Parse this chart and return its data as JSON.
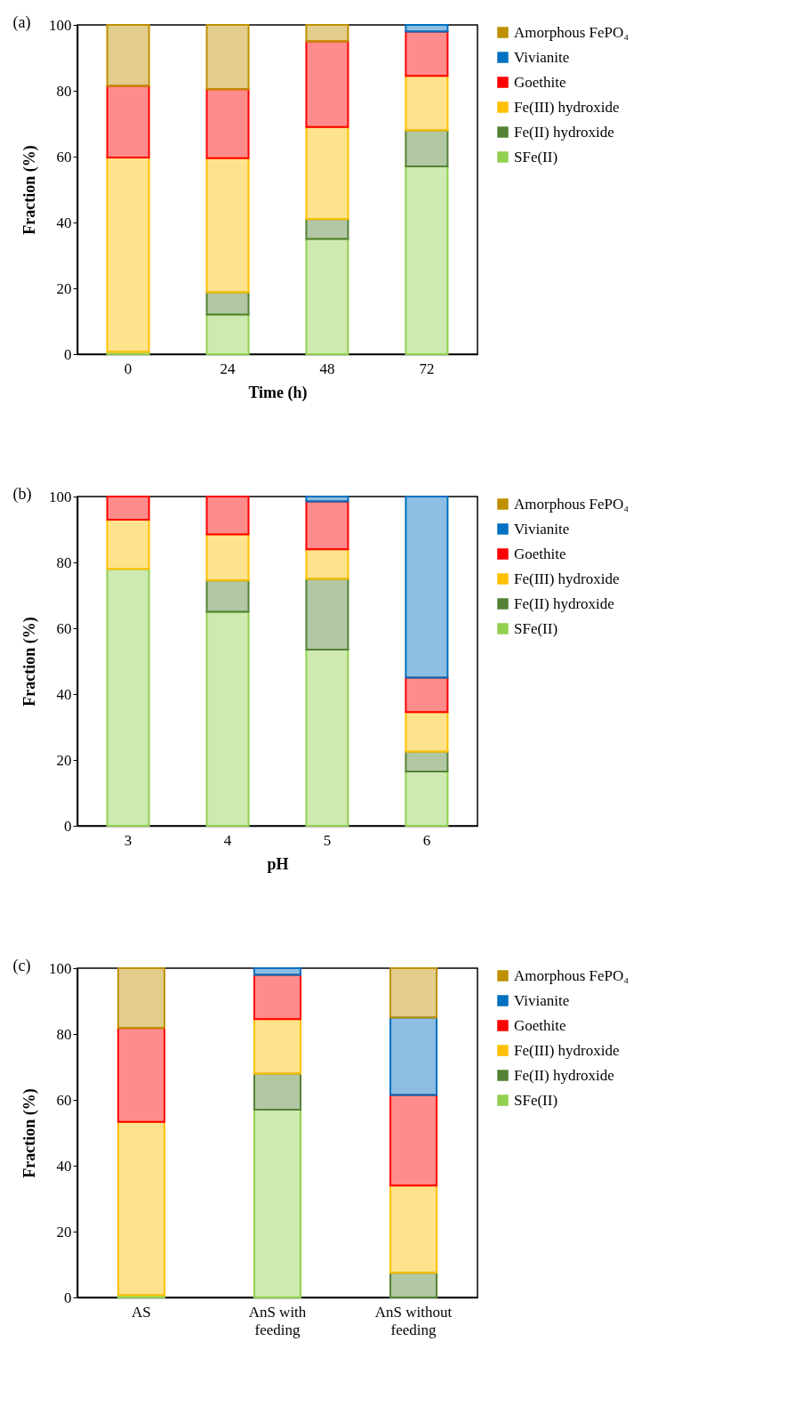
{
  "chart_data": [
    {
      "type": "bar",
      "title": "(a)",
      "xlabel": "Time (h)",
      "ylabel": "Fraction (%)",
      "categories": [
        "0",
        "24",
        "48",
        "72"
      ],
      "stacked": true,
      "ylim": [
        0,
        100
      ],
      "yticks": [
        0,
        20,
        40,
        60,
        80,
        100
      ],
      "grid": false,
      "legend": "right",
      "series": [
        {
          "name": "SFe(II)",
          "color": "#92d050",
          "values": [
            0.7,
            12,
            35,
            57
          ]
        },
        {
          "name": "Fe(II) hydroxide",
          "color": "#548235",
          "values": [
            0,
            6.8,
            6,
            11
          ]
        },
        {
          "name": "Fe(III) hydroxide",
          "color": "#ffc000",
          "values": [
            59,
            40.7,
            28,
            16.5
          ]
        },
        {
          "name": "Goethite",
          "color": "#ff0000",
          "values": [
            21.8,
            21,
            26,
            13.5
          ]
        },
        {
          "name": "Vivianite",
          "color": "#0070c0",
          "values": [
            0,
            0,
            0,
            2
          ]
        },
        {
          "name": "Amorphous FePO₄",
          "color": "#bf9000",
          "values": [
            18.5,
            19.5,
            5,
            0
          ]
        }
      ]
    },
    {
      "type": "bar",
      "title": "(b)",
      "xlabel": "pH",
      "ylabel": "Fraction (%)",
      "categories": [
        "3",
        "4",
        "5",
        "6"
      ],
      "stacked": true,
      "ylim": [
        0,
        100
      ],
      "yticks": [
        0,
        20,
        40,
        60,
        80,
        100
      ],
      "grid": false,
      "legend": "right",
      "series": [
        {
          "name": "SFe(II)",
          "color": "#92d050",
          "values": [
            78,
            65,
            53.5,
            16.5
          ]
        },
        {
          "name": "Fe(II) hydroxide",
          "color": "#548235",
          "values": [
            0,
            9.5,
            21.5,
            6
          ]
        },
        {
          "name": "Fe(III) hydroxide",
          "color": "#ffc000",
          "values": [
            15,
            14,
            9,
            12
          ]
        },
        {
          "name": "Goethite",
          "color": "#ff0000",
          "values": [
            7,
            11.5,
            14.5,
            10.5
          ]
        },
        {
          "name": "Vivianite",
          "color": "#0070c0",
          "values": [
            0,
            0,
            1.5,
            55
          ]
        },
        {
          "name": "Amorphous FePO₄",
          "color": "#bf9000",
          "values": [
            0,
            0,
            0,
            0
          ]
        }
      ]
    },
    {
      "type": "bar",
      "title": "(c)",
      "ylabel": "Fraction (%)",
      "categories": [
        "AS",
        "AnS with feeding",
        "AnS without feeding"
      ],
      "stacked": true,
      "ylim": [
        0,
        100
      ],
      "yticks": [
        0,
        20,
        40,
        60,
        80,
        100
      ],
      "grid": false,
      "legend": "right",
      "series": [
        {
          "name": "SFe(II)",
          "color": "#92d050",
          "values": [
            0.7,
            57,
            0
          ]
        },
        {
          "name": "Fe(II) hydroxide",
          "color": "#548235",
          "values": [
            0,
            11,
            7.5
          ]
        },
        {
          "name": "Fe(III) hydroxide",
          "color": "#ffc000",
          "values": [
            52.6,
            16.5,
            26.5
          ]
        },
        {
          "name": "Goethite",
          "color": "#ff0000",
          "values": [
            28.5,
            13.5,
            27.5
          ]
        },
        {
          "name": "Vivianite",
          "color": "#0070c0",
          "values": [
            0,
            2,
            23.5
          ]
        },
        {
          "name": "Amorphous FePO₄",
          "color": "#bf9000",
          "values": [
            18.2,
            0,
            15
          ]
        }
      ]
    }
  ]
}
